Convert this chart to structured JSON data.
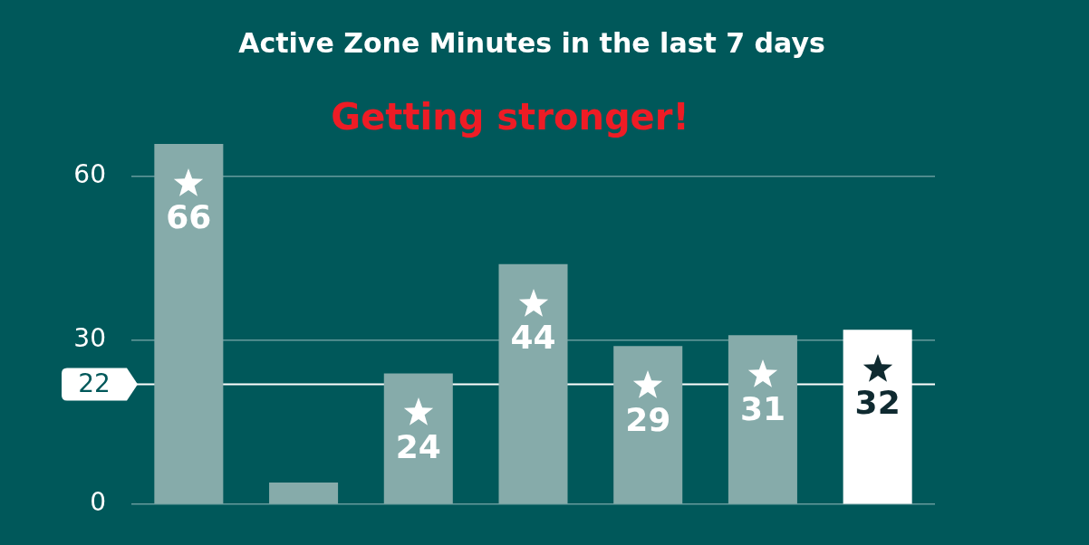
{
  "chart_data": {
    "type": "bar",
    "title": "Active Zone Minutes in the last 7 days",
    "annotations": [
      "Getting stronger!"
    ],
    "categories": [
      null,
      null,
      null,
      null,
      null,
      null,
      null
    ],
    "values": [
      66,
      4,
      24,
      44,
      29,
      31,
      32
    ],
    "colors": [
      "#86abaa",
      "#86abaa",
      "#86abaa",
      "#86abaa",
      "#86abaa",
      "#86abaa",
      "#ffffff"
    ],
    "value_labels": [
      "66",
      null,
      "24",
      "44",
      "29",
      "31",
      "32"
    ],
    "ylim": [
      0,
      66
    ],
    "yticks": [
      0,
      30,
      60
    ],
    "grid": "y",
    "legend": false,
    "tick_labels": "y",
    "ref_lines": [
      {
        "axis": "y",
        "value": 22,
        "label": "22",
        "color": "#ffffff"
      }
    ]
  }
}
